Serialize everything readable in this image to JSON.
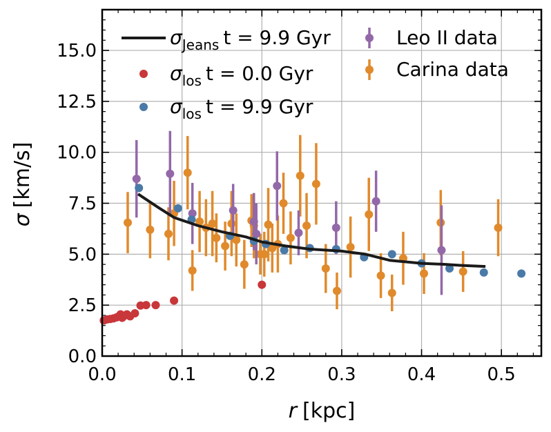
{
  "chart_data": {
    "type": "scatter",
    "xlabel_var": "r",
    "xlabel_unit": "[kpc]",
    "ylabel_var": "σ",
    "ylabel_unit": "[km/s]",
    "xlim": [
      0.0,
      0.55
    ],
    "ylim": [
      0.0,
      17.0
    ],
    "xticks": [
      0.0,
      0.1,
      0.2,
      0.3,
      0.4,
      0.5
    ],
    "yticks": [
      0.0,
      2.5,
      5.0,
      7.5,
      10.0,
      12.5,
      15.0
    ],
    "xtick_labels": [
      "0.0",
      "0.1",
      "0.2",
      "0.3",
      "0.4",
      "0.5"
    ],
    "ytick_labels": [
      "0.0",
      "2.5",
      "5.0",
      "7.5",
      "10.0",
      "12.5",
      "15.0"
    ],
    "grid": true,
    "legend": [
      {
        "symbol": "σ",
        "sub": "Jeans",
        "rest": "t = 9.9 Gyr"
      },
      {
        "symbol": "σ",
        "sub": "los",
        "rest": "t = 0.0 Gyr"
      },
      {
        "symbol": "σ",
        "sub": "los",
        "rest": "t = 9.9 Gyr"
      },
      {
        "text": "Leo II data"
      },
      {
        "text": "Carina data"
      }
    ],
    "colors": {
      "jeans": "#1a1a1a",
      "los_t0": "#c8373a",
      "los_t99": "#4a7aa8",
      "leo": "#9368a8",
      "carina": "#e08a2c"
    },
    "series": [
      {
        "name": "sigma_Jeans t=9.9 Gyr",
        "kind": "line",
        "x": [
          0.045,
          0.07,
          0.09,
          0.12,
          0.15,
          0.18,
          0.2,
          0.23,
          0.26,
          0.3,
          0.33,
          0.36,
          0.4,
          0.43,
          0.45,
          0.48
        ],
        "y": [
          7.95,
          7.3,
          6.8,
          6.4,
          6.1,
          5.85,
          5.6,
          5.4,
          5.25,
          5.15,
          5.0,
          4.7,
          4.55,
          4.5,
          4.45,
          4.4
        ]
      },
      {
        "name": "sigma_los t=0.0 Gyr",
        "kind": "points",
        "x": [
          0.002,
          0.006,
          0.01,
          0.014,
          0.018,
          0.021,
          0.023,
          0.025,
          0.028,
          0.031,
          0.035,
          0.041,
          0.048,
          0.055,
          0.067,
          0.09,
          0.2
        ],
        "y": [
          1.75,
          1.8,
          1.82,
          1.85,
          1.9,
          1.95,
          2.05,
          1.88,
          1.98,
          2.05,
          1.95,
          2.1,
          2.48,
          2.5,
          2.5,
          2.72,
          3.5
        ]
      },
      {
        "name": "sigma_los t=9.9 Gyr",
        "kind": "points",
        "x": [
          0.046,
          0.095,
          0.112,
          0.16,
          0.19,
          0.205,
          0.228,
          0.26,
          0.293,
          0.328,
          0.363,
          0.4,
          0.435,
          0.478,
          0.525
        ],
        "y": [
          8.25,
          7.25,
          6.7,
          5.9,
          5.65,
          5.5,
          5.2,
          5.3,
          5.25,
          4.85,
          5.0,
          4.55,
          4.3,
          4.1,
          4.05
        ]
      },
      {
        "name": "Leo II data",
        "kind": "errorbar",
        "x": [
          0.043,
          0.085,
          0.113,
          0.164,
          0.19,
          0.193,
          0.219,
          0.246,
          0.293,
          0.343,
          0.425
        ],
        "y": [
          8.7,
          8.95,
          7.0,
          7.15,
          6.6,
          6.0,
          8.35,
          6.05,
          6.3,
          7.6,
          5.2
        ],
        "err": [
          1.9,
          2.1,
          1.5,
          1.3,
          1.4,
          1.5,
          1.7,
          1.1,
          1.3,
          1.5,
          2.2
        ]
      },
      {
        "name": "Carina data",
        "kind": "errorbar",
        "x": [
          0.032,
          0.06,
          0.083,
          0.09,
          0.107,
          0.113,
          0.122,
          0.13,
          0.138,
          0.143,
          0.154,
          0.162,
          0.168,
          0.178,
          0.187,
          0.19,
          0.198,
          0.203,
          0.208,
          0.213,
          0.22,
          0.227,
          0.236,
          0.248,
          0.256,
          0.268,
          0.28,
          0.294,
          0.311,
          0.334,
          0.349,
          0.363,
          0.377,
          0.403,
          0.424,
          0.452,
          0.496
        ],
        "y": [
          6.55,
          6.2,
          6.0,
          7.0,
          9.0,
          4.2,
          6.6,
          6.3,
          6.5,
          5.8,
          5.4,
          6.5,
          5.7,
          4.5,
          6.65,
          6.4,
          5.0,
          5.0,
          6.45,
          5.3,
          5.5,
          7.5,
          5.8,
          8.85,
          6.4,
          8.45,
          4.3,
          3.2,
          5.35,
          6.95,
          3.95,
          3.1,
          4.8,
          4.05,
          6.55,
          4.15,
          6.3
        ],
        "err": [
          1.5,
          1.4,
          1.3,
          1.6,
          1.8,
          1.0,
          1.5,
          1.4,
          1.6,
          1.2,
          1.2,
          1.6,
          1.3,
          1.2,
          1.3,
          1.6,
          1.0,
          1.1,
          1.8,
          1.2,
          1.4,
          1.5,
          1.3,
          2.0,
          1.6,
          2.0,
          1.2,
          0.9,
          1.5,
          1.8,
          1.1,
          0.9,
          1.3,
          1.0,
          1.6,
          1.0,
          1.4
        ]
      }
    ]
  }
}
